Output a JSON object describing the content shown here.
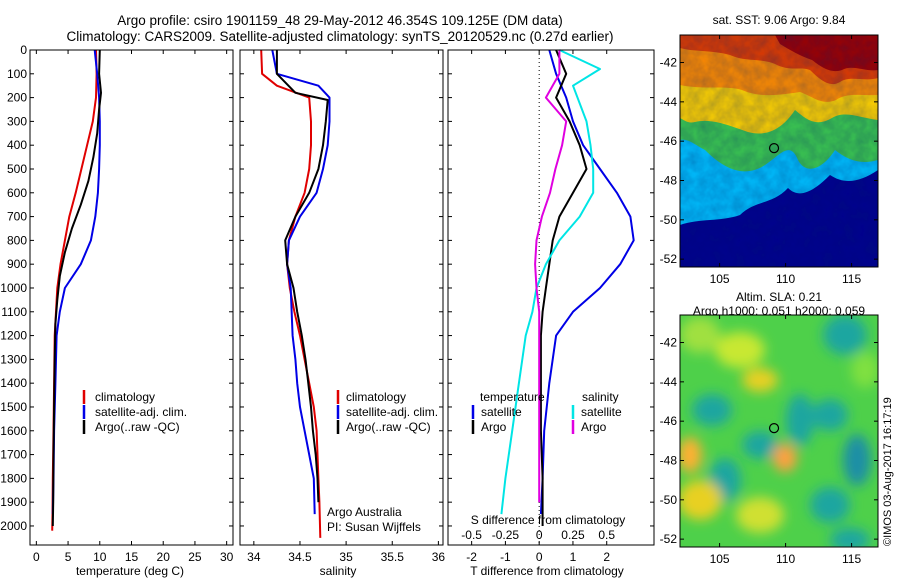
{
  "title": {
    "line1": "Argo profile: csiro 1901159_48 29-May-2012 46.354S 109.125E (DM data)",
    "line2": "Climatology: CARS2009. Satellite-adjusted climatology: synTS_20120529.nc (0.27d earlier)"
  },
  "colors": {
    "climatology": "#e00000",
    "satellite": "#0000e6",
    "argo": "#000000",
    "sat_salinity": "#00e5e5",
    "argo_salinity": "#e000e0"
  },
  "credit": {
    "argo_australia": "Argo Australia",
    "pi": "PI: Susan Wijffels",
    "imos": "©IMOS 03-Aug-2017 16:17:19"
  },
  "chart_data": [
    {
      "type": "line",
      "id": "temperature",
      "xlabel": "temperature (deg C)",
      "ylabel": "",
      "xlim": [
        -1,
        31
      ],
      "ylim": [
        2080,
        0
      ],
      "xticks": [
        0,
        5,
        10,
        15,
        20,
        25,
        30
      ],
      "yticks": [
        0,
        100,
        200,
        300,
        400,
        500,
        600,
        700,
        800,
        900,
        1000,
        1100,
        1200,
        1300,
        1400,
        1500,
        1600,
        1700,
        1800,
        1900,
        2000
      ],
      "legend": {
        "position": "lower-right",
        "entries": [
          "climatology",
          "satellite-adj. clim.",
          "Argo(..raw -QC)"
        ]
      },
      "series": [
        {
          "name": "climatology",
          "color_key": "climatology",
          "x": [
            9.4,
            9.5,
            9.4,
            8.9,
            8.0,
            7.1,
            6.2,
            5.2,
            4.5,
            3.8,
            3.3,
            3.1,
            2.9,
            2.8,
            2.7,
            2.6,
            2.55,
            2.5
          ],
          "y": [
            0,
            100,
            200,
            300,
            400,
            500,
            600,
            700,
            800,
            900,
            1000,
            1100,
            1200,
            1400,
            1600,
            1800,
            1950,
            2020
          ]
        },
        {
          "name": "satellite-adj. clim.",
          "color_key": "satellite",
          "x": [
            9.2,
            9.6,
            9.9,
            10.0,
            10.0,
            9.9,
            9.7,
            9.3,
            8.6,
            7.0,
            4.5,
            3.7,
            3.2,
            3.0,
            2.8,
            2.7,
            2.6
          ],
          "y": [
            0,
            100,
            200,
            300,
            400,
            500,
            600,
            700,
            800,
            900,
            1000,
            1100,
            1200,
            1400,
            1600,
            1800,
            1950
          ]
        },
        {
          "name": "Argo(..raw -QC)",
          "color_key": "argo",
          "x": [
            10.0,
            9.9,
            10.2,
            9.9,
            9.6,
            9.0,
            8.2,
            7.0,
            5.6,
            4.5,
            3.7,
            3.3,
            3.0,
            2.9,
            2.8,
            2.7,
            2.65,
            2.6
          ],
          "y": [
            0,
            100,
            180,
            250,
            350,
            450,
            550,
            650,
            750,
            850,
            950,
            1050,
            1150,
            1300,
            1500,
            1700,
            1900,
            2000
          ]
        }
      ]
    },
    {
      "type": "line",
      "id": "salinity",
      "xlabel": "salinity",
      "ylabel": "",
      "xlim": [
        33.85,
        36.05
      ],
      "ylim": [
        2080,
        0
      ],
      "xticks": [
        34,
        34.5,
        35,
        35.5,
        36
      ],
      "legend": {
        "position": "lower-right",
        "entries": [
          "climatology",
          "satellite-adj. clim.",
          "Argo(..raw -QC)"
        ]
      },
      "series": [
        {
          "name": "climatology",
          "color_key": "climatology",
          "x": [
            34.08,
            34.09,
            34.25,
            34.6,
            34.62,
            34.62,
            34.6,
            34.55,
            34.45,
            34.38,
            34.36,
            34.39,
            34.44,
            34.5,
            34.55,
            34.6,
            34.65,
            34.68,
            34.7,
            34.71,
            34.72
          ],
          "y": [
            0,
            100,
            150,
            200,
            300,
            400,
            500,
            600,
            700,
            800,
            900,
            1000,
            1100,
            1200,
            1300,
            1400,
            1500,
            1600,
            1800,
            1900,
            2050
          ]
        },
        {
          "name": "satellite-adj. clim.",
          "color_key": "satellite",
          "x": [
            34.2,
            34.25,
            34.7,
            34.82,
            34.82,
            34.8,
            34.75,
            34.68,
            34.5,
            34.38,
            34.36,
            34.4,
            34.42,
            34.45,
            34.47,
            34.5,
            34.55,
            34.6,
            34.65,
            34.66
          ],
          "y": [
            0,
            100,
            150,
            200,
            300,
            400,
            500,
            600,
            700,
            800,
            900,
            1000,
            1200,
            1300,
            1400,
            1500,
            1600,
            1700,
            1800,
            1950
          ]
        },
        {
          "name": "Argo(..raw -QC)",
          "color_key": "argo",
          "x": [
            34.25,
            34.25,
            34.45,
            34.8,
            34.78,
            34.75,
            34.7,
            34.6,
            34.45,
            34.34,
            34.36,
            34.43,
            34.47,
            34.52,
            34.56,
            34.59,
            34.62,
            34.64,
            34.67,
            34.69,
            34.7
          ],
          "y": [
            0,
            100,
            180,
            210,
            300,
            400,
            500,
            600,
            700,
            800,
            900,
            1000,
            1100,
            1200,
            1300,
            1400,
            1500,
            1600,
            1700,
            1800,
            1900
          ]
        }
      ]
    },
    {
      "type": "line",
      "id": "difference",
      "xlabel": "T difference from climatology",
      "xlabel_top": "S difference from climatology",
      "ylabel": "",
      "xlim": [
        -2.7,
        3.4
      ],
      "xlim_salinity": [
        -0.675,
        0.85
      ],
      "ylim": [
        2080,
        0
      ],
      "xticks": [
        -2,
        -1,
        0,
        1,
        2
      ],
      "xticks_salinity": [
        -0.5,
        -0.25,
        0,
        0.25,
        0.5
      ],
      "legend": {
        "position": "lower-center",
        "entries": [
          "temperature",
          "satellite",
          "Argo",
          "salinity",
          "satellite",
          "Argo"
        ]
      },
      "series": [
        {
          "name": "satellite",
          "group": "temperature",
          "color_key": "satellite",
          "x": [
            0.3,
            0.5,
            0.8,
            1.0,
            1.3,
            1.8,
            2.3,
            2.7,
            2.8,
            2.4,
            1.8,
            1.0,
            0.5,
            0.3,
            0.15,
            0.1,
            0.05
          ],
          "y": [
            0,
            100,
            200,
            300,
            400,
            500,
            600,
            700,
            800,
            900,
            1000,
            1100,
            1200,
            1400,
            1600,
            1800,
            1950
          ]
        },
        {
          "name": "Argo",
          "group": "temperature",
          "color_key": "argo",
          "x": [
            0.5,
            0.8,
            0.5,
            0.9,
            1.2,
            1.4,
            1.0,
            0.6,
            0.4,
            0.3,
            0.2,
            0.1,
            0.05,
            0.05,
            0.05,
            0.1,
            0.1
          ],
          "y": [
            0,
            100,
            200,
            300,
            400,
            500,
            600,
            700,
            800,
            900,
            1000,
            1100,
            1200,
            1400,
            1600,
            1800,
            2000
          ]
        },
        {
          "name": "satellite",
          "group": "salinity",
          "color_key": "sat_salinity",
          "x": [
            0.15,
            0.45,
            0.25,
            0.35,
            0.38,
            0.4,
            0.4,
            0.3,
            0.15,
            0.05,
            -0.02,
            -0.05,
            -0.1,
            -0.15,
            -0.2,
            -0.25,
            -0.28
          ],
          "y": [
            0,
            80,
            150,
            300,
            400,
            500,
            600,
            700,
            800,
            900,
            1000,
            1100,
            1200,
            1400,
            1600,
            1800,
            1950
          ]
        },
        {
          "name": "Argo",
          "group": "salinity",
          "color_key": "argo_salinity",
          "x": [
            0.15,
            0.15,
            0.05,
            0.2,
            0.17,
            0.12,
            0.08,
            0.02,
            -0.02,
            -0.03,
            -0.02,
            0.0,
            0.0,
            0.0,
            0.0,
            0.0
          ],
          "y": [
            0,
            100,
            200,
            300,
            400,
            500,
            600,
            700,
            800,
            900,
            1000,
            1100,
            1200,
            1400,
            1600,
            1900
          ]
        }
      ]
    },
    {
      "type": "heatmap",
      "id": "sst_map",
      "title": "sat. SST: 9.06 Argo: 9.84",
      "xlim": [
        102,
        117
      ],
      "ylim": [
        -52.4,
        -40.6
      ],
      "xticks": [
        105,
        110,
        115
      ],
      "yticks": [
        -42,
        -44,
        -46,
        -48,
        -50,
        -52
      ],
      "marker": {
        "lon": 109.125,
        "lat": -46.354
      }
    },
    {
      "type": "heatmap",
      "id": "sla_map",
      "title": "Altim. SLA: 0.21",
      "subtitle": "Argo h1000: 0.051 h2000: 0.059",
      "xlim": [
        102,
        117
      ],
      "ylim": [
        -52.4,
        -40.6
      ],
      "xticks": [
        105,
        110,
        115
      ],
      "yticks": [
        -42,
        -44,
        -46,
        -48,
        -50,
        -52
      ],
      "marker": {
        "lon": 109.125,
        "lat": -46.354
      }
    }
  ]
}
